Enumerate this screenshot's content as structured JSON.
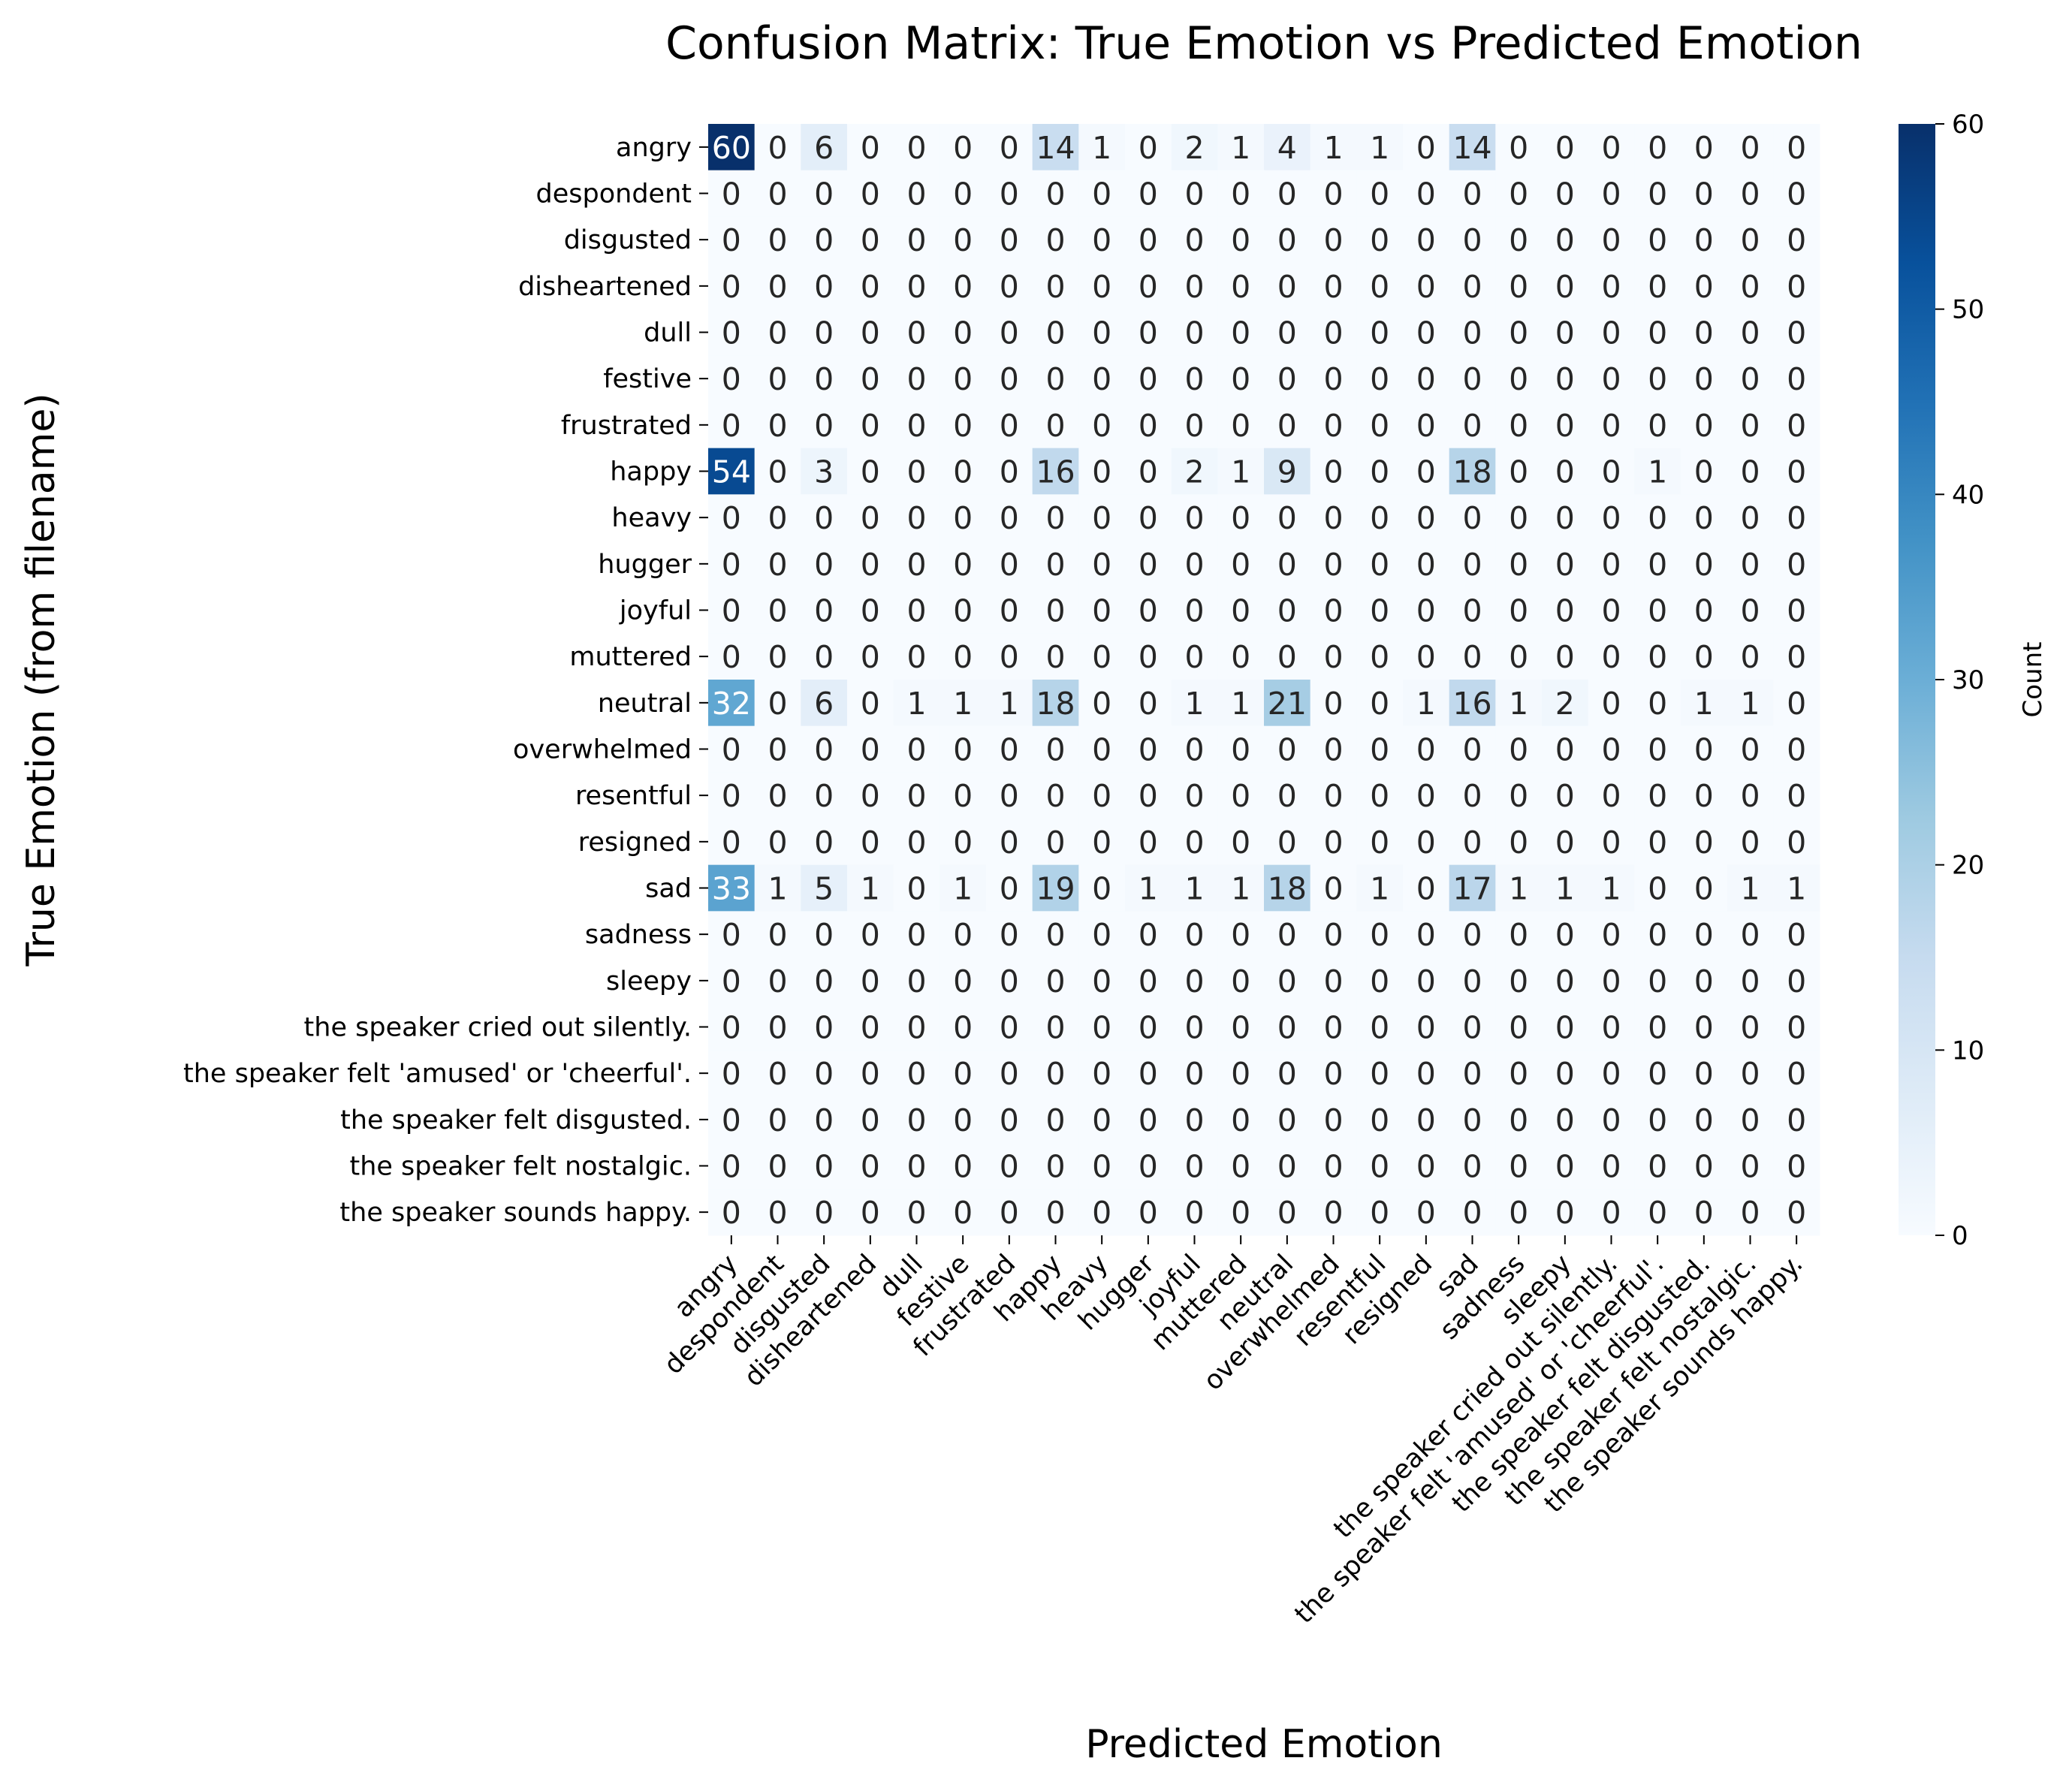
{
  "chart_data": {
    "type": "heatmap",
    "title": "Confusion Matrix: True Emotion vs Predicted Emotion",
    "xlabel": "Predicted Emotion",
    "ylabel": "True Emotion (from filename)",
    "colorbar": {
      "label": "Count",
      "min": 0,
      "max": 60,
      "ticks": [
        "0",
        "10",
        "20",
        "30",
        "40",
        "50",
        "60"
      ],
      "colormap": "Blues",
      "low_color": "#f7fbff",
      "high_color": "#08306b"
    },
    "row_labels": [
      "angry",
      "despondent",
      "disgusted",
      "disheartened",
      "dull",
      "festive",
      "frustrated",
      "happy",
      "heavy",
      "hugger",
      "joyful",
      "muttered",
      "neutral",
      "overwhelmed",
      "resentful",
      "resigned",
      "sad",
      "sadness",
      "sleepy",
      "the speaker cried out silently.",
      "the speaker felt 'amused' or 'cheerful'.",
      "the speaker felt disgusted.",
      "the speaker felt nostalgic.",
      "the speaker sounds happy."
    ],
    "col_labels": [
      "angry",
      "despondent",
      "disgusted",
      "disheartened",
      "dull",
      "festive",
      "frustrated",
      "happy",
      "heavy",
      "hugger",
      "joyful",
      "muttered",
      "neutral",
      "overwhelmed",
      "resentful",
      "resigned",
      "sad",
      "sadness",
      "sleepy",
      "the speaker cried out silently.",
      "the speaker felt 'amused' or 'cheerful'.",
      "the speaker felt disgusted.",
      "the speaker felt nostalgic.",
      "the speaker sounds happy."
    ],
    "matrix": [
      [
        60,
        0,
        6,
        0,
        0,
        0,
        0,
        14,
        1,
        0,
        2,
        1,
        4,
        1,
        1,
        0,
        14,
        0,
        0,
        0,
        0,
        0,
        0,
        0
      ],
      [
        0,
        0,
        0,
        0,
        0,
        0,
        0,
        0,
        0,
        0,
        0,
        0,
        0,
        0,
        0,
        0,
        0,
        0,
        0,
        0,
        0,
        0,
        0,
        0
      ],
      [
        0,
        0,
        0,
        0,
        0,
        0,
        0,
        0,
        0,
        0,
        0,
        0,
        0,
        0,
        0,
        0,
        0,
        0,
        0,
        0,
        0,
        0,
        0,
        0
      ],
      [
        0,
        0,
        0,
        0,
        0,
        0,
        0,
        0,
        0,
        0,
        0,
        0,
        0,
        0,
        0,
        0,
        0,
        0,
        0,
        0,
        0,
        0,
        0,
        0
      ],
      [
        0,
        0,
        0,
        0,
        0,
        0,
        0,
        0,
        0,
        0,
        0,
        0,
        0,
        0,
        0,
        0,
        0,
        0,
        0,
        0,
        0,
        0,
        0,
        0
      ],
      [
        0,
        0,
        0,
        0,
        0,
        0,
        0,
        0,
        0,
        0,
        0,
        0,
        0,
        0,
        0,
        0,
        0,
        0,
        0,
        0,
        0,
        0,
        0,
        0
      ],
      [
        0,
        0,
        0,
        0,
        0,
        0,
        0,
        0,
        0,
        0,
        0,
        0,
        0,
        0,
        0,
        0,
        0,
        0,
        0,
        0,
        0,
        0,
        0,
        0
      ],
      [
        54,
        0,
        3,
        0,
        0,
        0,
        0,
        16,
        0,
        0,
        2,
        1,
        9,
        0,
        0,
        0,
        18,
        0,
        0,
        0,
        1,
        0,
        0,
        0
      ],
      [
        0,
        0,
        0,
        0,
        0,
        0,
        0,
        0,
        0,
        0,
        0,
        0,
        0,
        0,
        0,
        0,
        0,
        0,
        0,
        0,
        0,
        0,
        0,
        0
      ],
      [
        0,
        0,
        0,
        0,
        0,
        0,
        0,
        0,
        0,
        0,
        0,
        0,
        0,
        0,
        0,
        0,
        0,
        0,
        0,
        0,
        0,
        0,
        0,
        0
      ],
      [
        0,
        0,
        0,
        0,
        0,
        0,
        0,
        0,
        0,
        0,
        0,
        0,
        0,
        0,
        0,
        0,
        0,
        0,
        0,
        0,
        0,
        0,
        0,
        0
      ],
      [
        0,
        0,
        0,
        0,
        0,
        0,
        0,
        0,
        0,
        0,
        0,
        0,
        0,
        0,
        0,
        0,
        0,
        0,
        0,
        0,
        0,
        0,
        0,
        0
      ],
      [
        32,
        0,
        6,
        0,
        1,
        1,
        1,
        18,
        0,
        0,
        1,
        1,
        21,
        0,
        0,
        1,
        16,
        1,
        2,
        0,
        0,
        1,
        1,
        0
      ],
      [
        0,
        0,
        0,
        0,
        0,
        0,
        0,
        0,
        0,
        0,
        0,
        0,
        0,
        0,
        0,
        0,
        0,
        0,
        0,
        0,
        0,
        0,
        0,
        0
      ],
      [
        0,
        0,
        0,
        0,
        0,
        0,
        0,
        0,
        0,
        0,
        0,
        0,
        0,
        0,
        0,
        0,
        0,
        0,
        0,
        0,
        0,
        0,
        0,
        0
      ],
      [
        0,
        0,
        0,
        0,
        0,
        0,
        0,
        0,
        0,
        0,
        0,
        0,
        0,
        0,
        0,
        0,
        0,
        0,
        0,
        0,
        0,
        0,
        0,
        0
      ],
      [
        33,
        1,
        5,
        1,
        0,
        1,
        0,
        19,
        0,
        1,
        1,
        1,
        18,
        0,
        1,
        0,
        17,
        1,
        1,
        1,
        0,
        0,
        1,
        1
      ],
      [
        0,
        0,
        0,
        0,
        0,
        0,
        0,
        0,
        0,
        0,
        0,
        0,
        0,
        0,
        0,
        0,
        0,
        0,
        0,
        0,
        0,
        0,
        0,
        0
      ],
      [
        0,
        0,
        0,
        0,
        0,
        0,
        0,
        0,
        0,
        0,
        0,
        0,
        0,
        0,
        0,
        0,
        0,
        0,
        0,
        0,
        0,
        0,
        0,
        0
      ],
      [
        0,
        0,
        0,
        0,
        0,
        0,
        0,
        0,
        0,
        0,
        0,
        0,
        0,
        0,
        0,
        0,
        0,
        0,
        0,
        0,
        0,
        0,
        0,
        0
      ],
      [
        0,
        0,
        0,
        0,
        0,
        0,
        0,
        0,
        0,
        0,
        0,
        0,
        0,
        0,
        0,
        0,
        0,
        0,
        0,
        0,
        0,
        0,
        0,
        0
      ],
      [
        0,
        0,
        0,
        0,
        0,
        0,
        0,
        0,
        0,
        0,
        0,
        0,
        0,
        0,
        0,
        0,
        0,
        0,
        0,
        0,
        0,
        0,
        0,
        0
      ],
      [
        0,
        0,
        0,
        0,
        0,
        0,
        0,
        0,
        0,
        0,
        0,
        0,
        0,
        0,
        0,
        0,
        0,
        0,
        0,
        0,
        0,
        0,
        0,
        0
      ],
      [
        0,
        0,
        0,
        0,
        0,
        0,
        0,
        0,
        0,
        0,
        0,
        0,
        0,
        0,
        0,
        0,
        0,
        0,
        0,
        0,
        0,
        0,
        0,
        0
      ]
    ]
  }
}
